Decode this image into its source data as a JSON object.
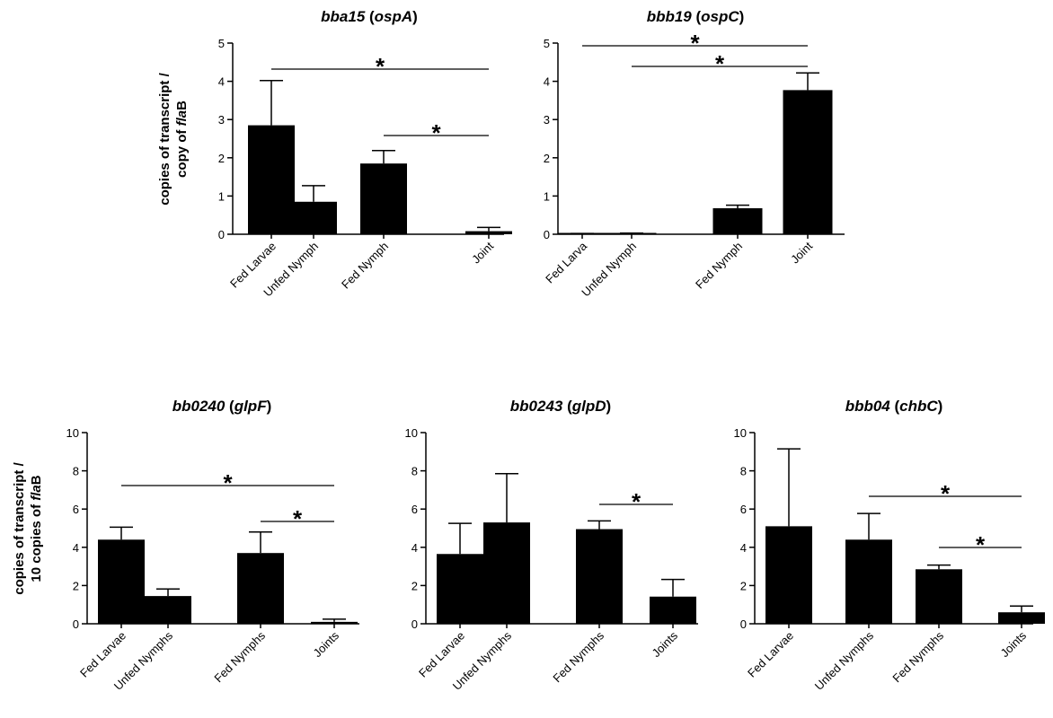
{
  "y_labels": [
    {
      "line1": "copies of transcript /",
      "line2_prefix": "copy of ",
      "line2_italic": "fla",
      "line2_suffix": "B"
    },
    {
      "line1": "copies of transcript /",
      "line2_prefix": "10 copies of ",
      "line2_italic": "fla",
      "line2_suffix": "B"
    }
  ],
  "chart_data": [
    {
      "type": "bar",
      "title": {
        "gene": "bba15",
        "protein": "ospA"
      },
      "categories": [
        "Fed Larvae",
        "Unfed Nymph",
        "Fed Nymph",
        "Joint"
      ],
      "values": [
        2.85,
        0.85,
        1.85,
        0.08
      ],
      "errors": [
        1.17,
        0.42,
        0.34,
        0.1
      ],
      "ylim": [
        0,
        5
      ],
      "yticks": [
        "0",
        "1",
        "2",
        "3",
        "4",
        "5"
      ],
      "significance": [
        {
          "from": 0,
          "to": 3,
          "label": "*"
        },
        {
          "from": 2,
          "to": 3,
          "label": "*"
        }
      ]
    },
    {
      "type": "bar",
      "title": {
        "gene": "bbb19",
        "protein": "ospC"
      },
      "categories": [
        "Fed Larva",
        "Unfed Nymph",
        "Fed Nymph",
        "Joint"
      ],
      "values": [
        0.01,
        0.01,
        0.68,
        3.77
      ],
      "errors": [
        0.01,
        0.02,
        0.08,
        0.45
      ],
      "ylim": [
        0,
        5
      ],
      "yticks": [
        "0",
        "1",
        "2",
        "3",
        "4",
        "5"
      ],
      "significance": [
        {
          "from": 0,
          "to": 3,
          "label": "*"
        },
        {
          "from": 1,
          "to": 3,
          "label": "*"
        }
      ]
    },
    {
      "type": "bar",
      "title": {
        "gene": "bb0240",
        "protein": "glpF"
      },
      "categories": [
        "Fed Larvae",
        "Unfed Nymphs",
        "Fed Nymphs",
        "Joints"
      ],
      "values": [
        4.4,
        1.45,
        3.7,
        0.1
      ],
      "errors": [
        0.65,
        0.37,
        1.1,
        0.14
      ],
      "ylim": [
        0,
        10
      ],
      "yticks": [
        "0",
        "2",
        "4",
        "6",
        "8",
        "10"
      ],
      "significance": [
        {
          "from": 0,
          "to": 3,
          "label": "*"
        },
        {
          "from": 2,
          "to": 3,
          "label": "*"
        }
      ]
    },
    {
      "type": "bar",
      "title": {
        "gene": "bb0243",
        "protein": "glpD"
      },
      "categories": [
        "Fed Larvae",
        "Unfed Nymphs",
        "Fed Nymphs",
        "Joints"
      ],
      "values": [
        3.65,
        5.3,
        4.95,
        1.42
      ],
      "errors": [
        1.6,
        2.55,
        0.43,
        0.9
      ],
      "ylim": [
        0,
        10
      ],
      "yticks": [
        "0",
        "2",
        "4",
        "6",
        "8",
        "10"
      ],
      "significance": [
        {
          "from": 2,
          "to": 3,
          "label": "*"
        }
      ]
    },
    {
      "type": "bar",
      "title": {
        "gene": "bbb04",
        "protein": "chbC"
      },
      "categories": [
        "Fed Larvae",
        "Unfed Nymphs",
        "Fed Nymphs",
        "Joints"
      ],
      "values": [
        5.1,
        4.4,
        2.85,
        0.6
      ],
      "errors": [
        4.05,
        1.37,
        0.22,
        0.33
      ],
      "ylim": [
        0,
        10
      ],
      "yticks": [
        "0",
        "2",
        "4",
        "6",
        "8",
        "10"
      ],
      "significance": [
        {
          "from": 1,
          "to": 3,
          "label": "*"
        },
        {
          "from": 2,
          "to": 3,
          "label": "*"
        }
      ]
    }
  ]
}
